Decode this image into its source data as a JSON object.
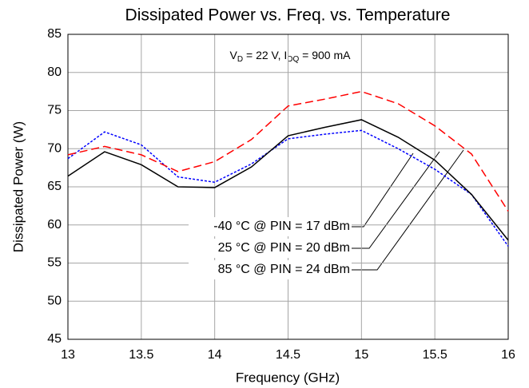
{
  "chart_data": {
    "type": "line",
    "title": "Dissipated Power vs. Freq. vs. Temperature",
    "subtitle": [
      {
        "text": "V"
      },
      {
        "text": "D",
        "sub": true
      },
      {
        "text": " = 22 V, I"
      },
      {
        "text": "DQ",
        "sub": true
      },
      {
        "text": " = 900 mA"
      }
    ],
    "x_label": "Frequency (GHz)",
    "y_label": "Dissipated Power (W)",
    "x": [
      13,
      13.25,
      13.5,
      13.75,
      14,
      14.25,
      14.5,
      14.75,
      15,
      15.25,
      15.5,
      15.75,
      16
    ],
    "series": [
      {
        "name": "-40 °C @ PIN = 17 dBm",
        "color": "#0000ff",
        "style": "dotted",
        "values": [
          68.7,
          72.2,
          70.5,
          66.3,
          65.6,
          68.0,
          71.3,
          71.9,
          72.4,
          70.0,
          67.3,
          64.0,
          57.2
        ]
      },
      {
        "name": "25 °C @ PIN = 20 dBm",
        "color": "#000000",
        "style": "solid",
        "values": [
          66.4,
          69.6,
          67.9,
          65.0,
          64.9,
          67.6,
          71.7,
          72.8,
          73.8,
          71.5,
          68.5,
          64.0,
          58.0
        ]
      },
      {
        "name": "85 °C @ PIN = 24 dBm",
        "color": "#ff0000",
        "style": "dashed",
        "values": [
          69.2,
          70.3,
          69.2,
          67.0,
          68.3,
          71.2,
          75.6,
          76.5,
          77.5,
          75.9,
          73.0,
          69.3,
          61.8
        ]
      }
    ],
    "xlim": [
      13,
      16
    ],
    "xticks": [
      13,
      13.5,
      14,
      14.5,
      15,
      15.5,
      16
    ],
    "ylim": [
      45,
      85
    ],
    "yticks": [
      45,
      50,
      55,
      60,
      65,
      70,
      75,
      80,
      85
    ],
    "grid": true
  }
}
